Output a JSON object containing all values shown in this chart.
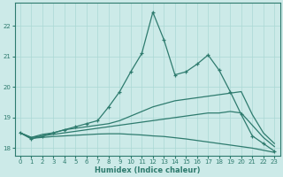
{
  "xlabel": "Humidex (Indice chaleur)",
  "xlim": [
    -0.5,
    23.5
  ],
  "ylim": [
    17.75,
    22.75
  ],
  "background_color": "#cceae8",
  "line_color": "#2e7b6e",
  "grid_color": "#aad8d4",
  "xticks": [
    0,
    1,
    2,
    3,
    4,
    5,
    6,
    7,
    8,
    9,
    10,
    11,
    12,
    13,
    14,
    15,
    16,
    17,
    18,
    19,
    20,
    21,
    22,
    23
  ],
  "yticks": [
    18,
    19,
    20,
    21,
    22
  ],
  "series": [
    {
      "x": [
        0,
        1,
        2,
        3,
        4,
        5,
        6,
        7,
        8,
        9,
        10,
        11,
        12,
        13,
        14,
        15,
        16,
        17,
        18,
        19,
        20,
        21,
        22,
        23
      ],
      "y": [
        18.5,
        18.3,
        18.4,
        18.5,
        18.6,
        18.7,
        18.8,
        18.9,
        19.35,
        19.85,
        20.5,
        21.1,
        22.45,
        21.55,
        20.4,
        20.5,
        20.75,
        21.05,
        20.55,
        19.85,
        19.1,
        18.4,
        18.15,
        17.9
      ],
      "marker": true
    },
    {
      "x": [
        0,
        1,
        2,
        3,
        4,
        5,
        6,
        7,
        8,
        9,
        10,
        11,
        12,
        13,
        14,
        15,
        16,
        17,
        18,
        19,
        20,
        21,
        22,
        23
      ],
      "y": [
        18.5,
        18.35,
        18.45,
        18.5,
        18.6,
        18.65,
        18.7,
        18.75,
        18.8,
        18.9,
        19.05,
        19.2,
        19.35,
        19.45,
        19.55,
        19.6,
        19.65,
        19.7,
        19.75,
        19.8,
        19.85,
        19.1,
        18.5,
        18.15
      ],
      "marker": false
    },
    {
      "x": [
        0,
        1,
        2,
        3,
        4,
        5,
        6,
        7,
        8,
        9,
        10,
        11,
        12,
        13,
        14,
        15,
        16,
        17,
        18,
        19,
        20,
        21,
        22,
        23
      ],
      "y": [
        18.5,
        18.35,
        18.4,
        18.45,
        18.5,
        18.55,
        18.6,
        18.65,
        18.7,
        18.75,
        18.8,
        18.85,
        18.9,
        18.95,
        19.0,
        19.05,
        19.1,
        19.15,
        19.15,
        19.2,
        19.15,
        18.75,
        18.35,
        18.05
      ],
      "marker": false
    },
    {
      "x": [
        0,
        1,
        2,
        3,
        4,
        5,
        6,
        7,
        8,
        9,
        10,
        11,
        12,
        13,
        14,
        15,
        16,
        17,
        18,
        19,
        20,
        21,
        22,
        23
      ],
      "y": [
        18.5,
        18.32,
        18.35,
        18.38,
        18.4,
        18.42,
        18.44,
        18.46,
        18.47,
        18.47,
        18.45,
        18.43,
        18.4,
        18.38,
        18.34,
        18.3,
        18.25,
        18.2,
        18.15,
        18.1,
        18.05,
        18.0,
        17.93,
        17.86
      ],
      "marker": false
    }
  ]
}
